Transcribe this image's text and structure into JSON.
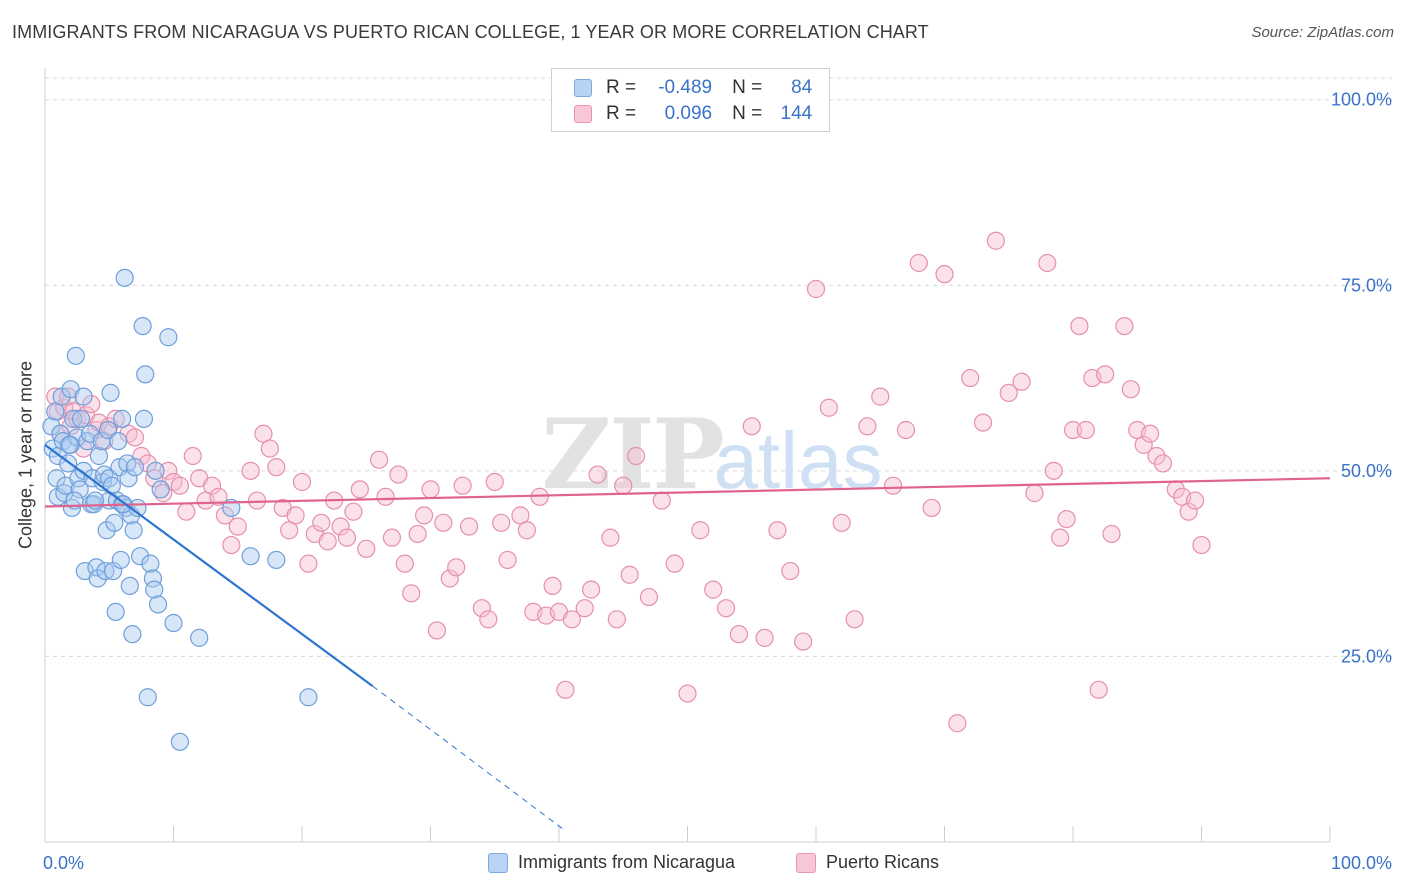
{
  "title": "IMMIGRANTS FROM NICARAGUA VS PUERTO RICAN COLLEGE, 1 YEAR OR MORE CORRELATION CHART",
  "source": "Source: ZipAtlas.com",
  "watermark": {
    "zip": "ZIP",
    "atlas": "atlas"
  },
  "legend_top": [
    {
      "r_label": "R =",
      "r_value": "-0.489",
      "n_label": "N =",
      "n_value": "84"
    },
    {
      "r_label": "R =",
      "r_value": "0.096",
      "n_label": "N =",
      "n_value": "144"
    }
  ],
  "legend_bottom": [
    {
      "label": "Immigrants from Nicaragua"
    },
    {
      "label": "Puerto Ricans"
    }
  ],
  "colors": {
    "blue_fill": "#a9c9f0",
    "blue_stroke": "#6f9fda",
    "blue_line": "#2f74d0",
    "pink_fill": "#f6bfd0",
    "pink_stroke": "#e58fae",
    "pink_line": "#e0638f",
    "tick_label": "#3a72c8",
    "grid": "#d9d9d9"
  },
  "chart_data": {
    "type": "scatter",
    "xlabel": "",
    "ylabel": "College, 1 year or more",
    "xlim": [
      0,
      100
    ],
    "ylim": [
      0,
      104
    ],
    "x_tick_labels": {
      "left": "0.0%",
      "right": "100.0%"
    },
    "y_ticks": [
      {
        "value": 25,
        "label": "25.0%"
      },
      {
        "value": 50,
        "label": "50.0%"
      },
      {
        "value": 75,
        "label": "75.0%"
      },
      {
        "value": 100,
        "label": "100.0%"
      }
    ],
    "series": [
      {
        "name": "Immigrants from Nicaragua",
        "r": -0.489,
        "n": 84,
        "trend": {
          "x0": 0,
          "y0": 53.5,
          "x1": 25.5,
          "y1": 21.0,
          "dash_x1": 40.5,
          "dash_y1": 1.5
        },
        "points": [
          [
            0.5,
            56
          ],
          [
            0.6,
            53
          ],
          [
            0.8,
            58
          ],
          [
            0.9,
            49
          ],
          [
            1.0,
            46.5
          ],
          [
            1.0,
            52
          ],
          [
            1.2,
            55
          ],
          [
            1.3,
            60
          ],
          [
            1.4,
            54
          ],
          [
            1.5,
            47
          ],
          [
            1.6,
            48
          ],
          [
            1.8,
            51
          ],
          [
            2.0,
            61
          ],
          [
            2.0,
            53.5
          ],
          [
            2.1,
            45
          ],
          [
            2.2,
            57
          ],
          [
            2.4,
            65.5
          ],
          [
            2.5,
            54.5
          ],
          [
            2.6,
            49
          ],
          [
            2.7,
            47.5
          ],
          [
            2.8,
            57
          ],
          [
            3.0,
            50
          ],
          [
            3.0,
            60
          ],
          [
            3.1,
            36.5
          ],
          [
            3.3,
            54
          ],
          [
            3.5,
            55
          ],
          [
            3.6,
            45.5
          ],
          [
            3.7,
            49
          ],
          [
            3.8,
            45.5
          ],
          [
            4.0,
            37
          ],
          [
            4.1,
            35.5
          ],
          [
            4.2,
            52
          ],
          [
            4.4,
            54
          ],
          [
            4.5,
            48.5
          ],
          [
            4.6,
            49.5
          ],
          [
            4.7,
            36.5
          ],
          [
            4.8,
            42
          ],
          [
            4.9,
            55.5
          ],
          [
            5.0,
            49
          ],
          [
            5.0,
            46
          ],
          [
            5.1,
            60.5
          ],
          [
            5.2,
            48
          ],
          [
            5.3,
            36.5
          ],
          [
            5.4,
            43
          ],
          [
            5.5,
            31
          ],
          [
            5.6,
            46
          ],
          [
            5.7,
            54
          ],
          [
            5.8,
            50.5
          ],
          [
            5.9,
            38
          ],
          [
            6.0,
            45.5
          ],
          [
            6.0,
            57
          ],
          [
            6.2,
            76
          ],
          [
            6.3,
            45
          ],
          [
            6.4,
            51
          ],
          [
            6.5,
            49
          ],
          [
            6.6,
            34.5
          ],
          [
            6.7,
            44
          ],
          [
            6.8,
            28
          ],
          [
            6.9,
            42
          ],
          [
            7.0,
            50.5
          ],
          [
            7.2,
            45
          ],
          [
            7.4,
            38.5
          ],
          [
            7.6,
            69.5
          ],
          [
            7.7,
            57
          ],
          [
            7.8,
            63
          ],
          [
            8.0,
            19.5
          ],
          [
            8.2,
            37.5
          ],
          [
            8.4,
            35.5
          ],
          [
            8.5,
            34
          ],
          [
            8.6,
            50
          ],
          [
            8.8,
            32
          ],
          [
            9.0,
            47.5
          ],
          [
            9.6,
            68
          ],
          [
            10.0,
            29.5
          ],
          [
            10.5,
            13.5
          ],
          [
            12.0,
            27.5
          ],
          [
            14.5,
            45
          ],
          [
            16.0,
            38.5
          ],
          [
            18.0,
            38
          ],
          [
            20.5,
            19.5
          ],
          [
            1.9,
            53.5
          ],
          [
            2.3,
            46
          ],
          [
            3.9,
            46
          ],
          [
            6.1,
            45.5
          ]
        ]
      },
      {
        "name": "Puerto Ricans",
        "r": 0.096,
        "n": 144,
        "trend": {
          "x0": 0,
          "y0": 45.2,
          "x1": 100,
          "y1": 49.0
        },
        "points": [
          [
            0.8,
            60
          ],
          [
            1.0,
            58
          ],
          [
            1.2,
            55
          ],
          [
            1.5,
            58.5
          ],
          [
            1.8,
            60
          ],
          [
            2.0,
            56
          ],
          [
            2.2,
            58
          ],
          [
            2.5,
            57
          ],
          [
            3.0,
            53
          ],
          [
            3.2,
            57.5
          ],
          [
            3.6,
            59
          ],
          [
            4.0,
            55.5
          ],
          [
            4.2,
            56.5
          ],
          [
            4.6,
            54
          ],
          [
            5.0,
            56
          ],
          [
            5.5,
            57
          ],
          [
            6.5,
            55
          ],
          [
            7.0,
            54.5
          ],
          [
            7.5,
            52
          ],
          [
            8.0,
            51
          ],
          [
            8.5,
            49
          ],
          [
            9.2,
            47
          ],
          [
            9.6,
            50
          ],
          [
            10.0,
            48.5
          ],
          [
            10.5,
            48
          ],
          [
            11.0,
            44.5
          ],
          [
            11.5,
            52
          ],
          [
            12.0,
            49
          ],
          [
            12.5,
            46
          ],
          [
            13.0,
            48
          ],
          [
            13.5,
            46.5
          ],
          [
            14.0,
            44
          ],
          [
            14.5,
            40
          ],
          [
            15.0,
            42.5
          ],
          [
            16.0,
            50
          ],
          [
            16.5,
            46
          ],
          [
            17.0,
            55
          ],
          [
            17.5,
            53
          ],
          [
            18.0,
            50.5
          ],
          [
            18.5,
            45
          ],
          [
            19.0,
            42
          ],
          [
            19.5,
            44
          ],
          [
            20.0,
            48.5
          ],
          [
            20.5,
            37.5
          ],
          [
            21.0,
            41.5
          ],
          [
            21.5,
            43
          ],
          [
            22.0,
            40.5
          ],
          [
            22.5,
            46
          ],
          [
            23.0,
            42.5
          ],
          [
            23.5,
            41
          ],
          [
            24.0,
            44.5
          ],
          [
            24.5,
            47.5
          ],
          [
            25.0,
            39.5
          ],
          [
            26.0,
            51.5
          ],
          [
            26.5,
            46.5
          ],
          [
            27.0,
            41
          ],
          [
            27.5,
            49.5
          ],
          [
            28.0,
            37.5
          ],
          [
            28.5,
            33.5
          ],
          [
            29.0,
            41.5
          ],
          [
            29.5,
            44
          ],
          [
            30.0,
            47.5
          ],
          [
            30.5,
            28.5
          ],
          [
            31.0,
            43
          ],
          [
            31.5,
            35.5
          ],
          [
            32.0,
            37
          ],
          [
            32.5,
            48
          ],
          [
            33.0,
            42.5
          ],
          [
            34.0,
            31.5
          ],
          [
            34.5,
            30
          ],
          [
            35.0,
            48.5
          ],
          [
            35.5,
            43
          ],
          [
            36.0,
            38
          ],
          [
            37.0,
            44
          ],
          [
            37.5,
            42
          ],
          [
            38.0,
            31
          ],
          [
            38.5,
            46.5
          ],
          [
            39.0,
            30.5
          ],
          [
            39.5,
            34.5
          ],
          [
            40.0,
            31
          ],
          [
            40.5,
            20.5
          ],
          [
            41.0,
            30
          ],
          [
            42.0,
            31.5
          ],
          [
            42.5,
            34
          ],
          [
            43.0,
            49.5
          ],
          [
            44.0,
            41
          ],
          [
            44.5,
            30
          ],
          [
            45.0,
            48
          ],
          [
            45.5,
            36
          ],
          [
            46.0,
            52
          ],
          [
            47.0,
            33
          ],
          [
            48.0,
            46
          ],
          [
            49.0,
            37.5
          ],
          [
            50.0,
            20
          ],
          [
            51.0,
            42
          ],
          [
            52.0,
            34
          ],
          [
            53.0,
            31.5
          ],
          [
            54.0,
            28
          ],
          [
            55.0,
            56
          ],
          [
            56.0,
            27.5
          ],
          [
            57.0,
            42
          ],
          [
            58.0,
            36.5
          ],
          [
            59.0,
            27
          ],
          [
            60.0,
            74.5
          ],
          [
            61.0,
            58.5
          ],
          [
            62.0,
            43
          ],
          [
            63.0,
            30
          ],
          [
            64.0,
            56
          ],
          [
            65.0,
            60
          ],
          [
            66.0,
            48
          ],
          [
            67.0,
            55.5
          ],
          [
            68.0,
            78
          ],
          [
            69.0,
            45
          ],
          [
            70.0,
            76.5
          ],
          [
            71.0,
            16
          ],
          [
            72.0,
            62.5
          ],
          [
            73.0,
            56.5
          ],
          [
            74.0,
            81
          ],
          [
            75.0,
            60.5
          ],
          [
            76.0,
            62
          ],
          [
            77.0,
            47
          ],
          [
            78.0,
            78
          ],
          [
            78.5,
            50
          ],
          [
            79.0,
            41
          ],
          [
            79.5,
            43.5
          ],
          [
            80.0,
            55.5
          ],
          [
            80.5,
            69.5
          ],
          [
            81.0,
            55.5
          ],
          [
            81.5,
            62.5
          ],
          [
            82.0,
            20.5
          ],
          [
            82.5,
            63
          ],
          [
            83.0,
            41.5
          ],
          [
            84.0,
            69.5
          ],
          [
            84.5,
            61
          ],
          [
            85.0,
            55.5
          ],
          [
            85.5,
            53.5
          ],
          [
            86.0,
            55
          ],
          [
            86.5,
            52
          ],
          [
            87.0,
            51
          ],
          [
            88.0,
            47.5
          ],
          [
            88.5,
            46.5
          ],
          [
            89.0,
            44.5
          ],
          [
            89.5,
            46
          ],
          [
            90.0,
            40
          ]
        ]
      }
    ]
  }
}
